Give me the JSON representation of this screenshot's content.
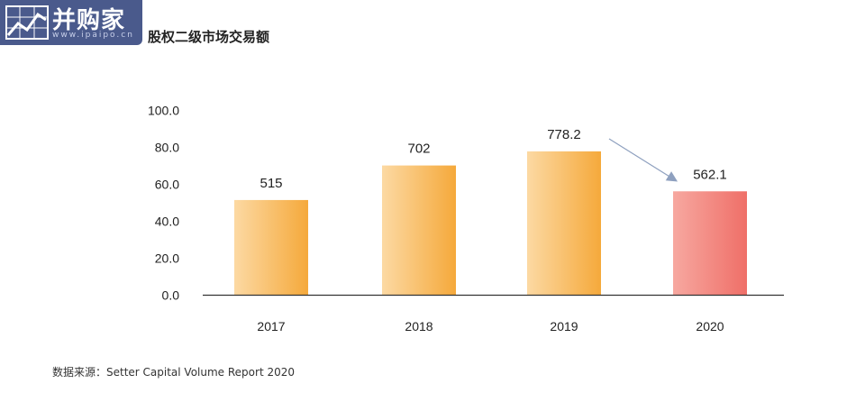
{
  "logo": {
    "text": "并购家",
    "url": "www.ipaipo.cn"
  },
  "title": "股权二级市场交易额",
  "source": "数据来源：Setter Capital Volume Report 2020",
  "colors": {
    "bar_gradient_start": "#fcd9a3",
    "bar_gradient_end": "#f5a93b",
    "highlight_gradient_start": "#f7a8a0",
    "highlight_gradient_end": "#ef6f68",
    "axis": "#333333",
    "arrow": "#8ea0bf"
  },
  "chart_data": {
    "type": "bar",
    "categories": [
      "2017",
      "2018",
      "2019",
      "2020"
    ],
    "values": [
      51.5,
      70.2,
      77.82,
      56.21
    ],
    "data_labels": [
      "515",
      "702",
      "778.2",
      "562.1"
    ],
    "y_ticks": [
      "0.0",
      "20.0",
      "40.0",
      "60.0",
      "80.0",
      "100.0"
    ],
    "ylim": [
      0,
      100
    ],
    "highlight_index": 3,
    "annotation": {
      "type": "arrow",
      "from_index": 2,
      "to_index": 3
    },
    "grid": false,
    "legend": "none"
  }
}
